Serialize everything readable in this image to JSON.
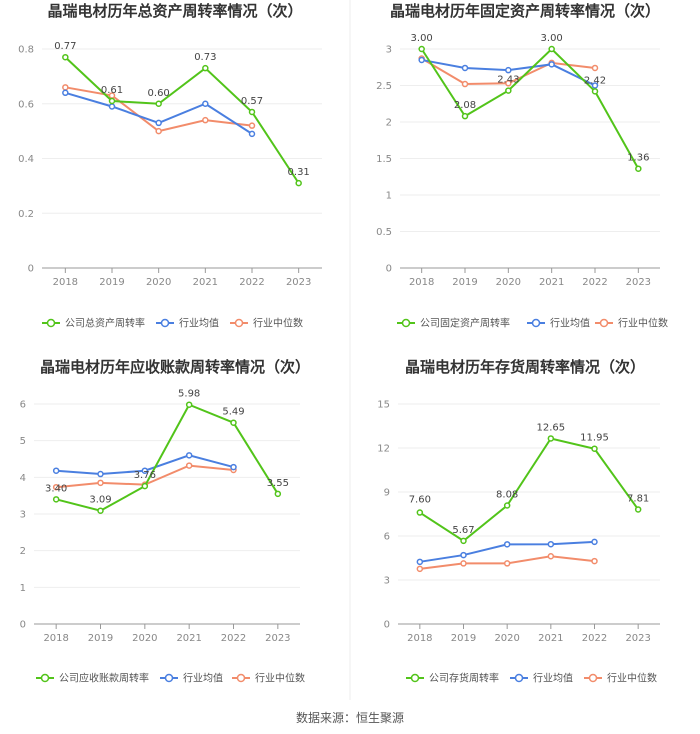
{
  "source": "数据来源：恒生聚源",
  "chart_data": [
    {
      "type": "line",
      "title": "晶瑞电材历年总资产周转率情况（次）",
      "categories": [
        "2018",
        "2019",
        "2020",
        "2021",
        "2022",
        "2023"
      ],
      "ylim": [
        0,
        0.8
      ],
      "yticks": [
        "0",
        "0.2",
        "0.4",
        "0.6",
        "0.8"
      ],
      "ytick_values": [
        0,
        0.2,
        0.4,
        0.6,
        0.8
      ],
      "series": [
        {
          "name": "公司总资产周转率",
          "color": "#52c41a",
          "values": [
            0.77,
            0.61,
            0.6,
            0.73,
            0.57,
            0.31
          ],
          "labels": [
            "0.77",
            "0.61",
            "0.60",
            "0.73",
            "0.57",
            "0.31"
          ]
        },
        {
          "name": "行业均值",
          "color": "#4a7fe0",
          "values": [
            0.64,
            0.59,
            0.53,
            0.6,
            0.49,
            null
          ]
        },
        {
          "name": "行业中位数",
          "color": "#f28c6b",
          "values": [
            0.66,
            0.63,
            0.5,
            0.54,
            0.52,
            null
          ]
        }
      ]
    },
    {
      "type": "line",
      "title": "晶瑞电材历年固定资产周转率情况（次）",
      "categories": [
        "2018",
        "2019",
        "2020",
        "2021",
        "2022",
        "2023"
      ],
      "ylim": [
        0,
        3
      ],
      "yticks": [
        "0",
        "0.5",
        "1",
        "1.5",
        "2",
        "2.5",
        "3"
      ],
      "ytick_values": [
        0,
        0.5,
        1,
        1.5,
        2,
        2.5,
        3
      ],
      "series": [
        {
          "name": "公司固定资产周转率",
          "color": "#52c41a",
          "values": [
            3.0,
            2.08,
            2.43,
            3.0,
            2.42,
            1.36
          ],
          "labels": [
            "3.00",
            "2.08",
            "2.43",
            "3.00",
            "2.42",
            "1.36"
          ]
        },
        {
          "name": "行业均值",
          "color": "#4a7fe0",
          "values": [
            2.85,
            2.74,
            2.71,
            2.79,
            2.5,
            null
          ]
        },
        {
          "name": "行业中位数",
          "color": "#f28c6b",
          "values": [
            2.87,
            2.52,
            2.53,
            2.81,
            2.74,
            null
          ]
        }
      ]
    },
    {
      "type": "line",
      "title": "晶瑞电材历年应收账款周转率情况（次）",
      "categories": [
        "2018",
        "2019",
        "2020",
        "2021",
        "2022",
        "2023"
      ],
      "ylim": [
        0,
        6
      ],
      "yticks": [
        "0",
        "1",
        "2",
        "3",
        "4",
        "5",
        "6"
      ],
      "ytick_values": [
        0,
        1,
        2,
        3,
        4,
        5,
        6
      ],
      "series": [
        {
          "name": "公司应收账款周转率",
          "color": "#52c41a",
          "values": [
            3.4,
            3.09,
            3.76,
            5.98,
            5.49,
            3.55
          ],
          "labels": [
            "3.40",
            "3.09",
            "3.76",
            "5.98",
            "5.49",
            "3.55"
          ]
        },
        {
          "name": "行业均值",
          "color": "#4a7fe0",
          "values": [
            4.18,
            4.09,
            4.18,
            4.6,
            4.28,
            null
          ]
        },
        {
          "name": "行业中位数",
          "color": "#f28c6b",
          "values": [
            3.73,
            3.85,
            3.8,
            4.32,
            4.2,
            null
          ]
        }
      ]
    },
    {
      "type": "line",
      "title": "晶瑞电材历年存货周转率情况（次）",
      "categories": [
        "2018",
        "2019",
        "2020",
        "2021",
        "2022",
        "2023"
      ],
      "ylim": [
        0,
        15
      ],
      "yticks": [
        "0",
        "3",
        "6",
        "9",
        "12",
        "15"
      ],
      "ytick_values": [
        0,
        3,
        6,
        9,
        12,
        15
      ],
      "series": [
        {
          "name": "公司存货周转率",
          "color": "#52c41a",
          "values": [
            7.6,
            5.67,
            8.08,
            12.65,
            11.95,
            7.81
          ],
          "labels": [
            "7.60",
            "5.67",
            "8.08",
            "12.65",
            "11.95",
            "7.81"
          ]
        },
        {
          "name": "行业均值",
          "color": "#4a7fe0",
          "values": [
            4.24,
            4.7,
            5.43,
            5.44,
            5.6,
            null
          ]
        },
        {
          "name": "行业中位数",
          "color": "#f28c6b",
          "values": [
            3.76,
            4.13,
            4.13,
            4.62,
            4.29,
            null
          ]
        }
      ]
    }
  ]
}
